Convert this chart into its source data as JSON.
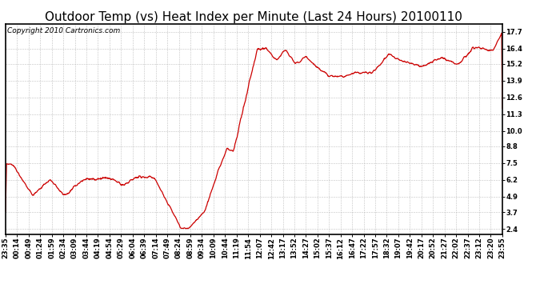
{
  "title": "Outdoor Temp (vs) Heat Index per Minute (Last 24 Hours) 20100110",
  "copyright": "Copyright 2010 Cartronics.com",
  "line_color": "#cc0000",
  "bg_color": "#ffffff",
  "grid_color": "#bbbbbb",
  "yticks": [
    2.4,
    3.7,
    4.9,
    6.2,
    7.5,
    8.8,
    10.0,
    11.3,
    12.6,
    13.9,
    15.2,
    16.4,
    17.7
  ],
  "ylim": [
    2.0,
    18.3
  ],
  "xtick_labels": [
    "23:35",
    "00:14",
    "00:49",
    "01:24",
    "01:59",
    "02:34",
    "03:09",
    "03:44",
    "04:19",
    "04:54",
    "05:29",
    "06:04",
    "06:39",
    "07:14",
    "07:49",
    "08:24",
    "08:59",
    "09:34",
    "10:09",
    "10:44",
    "11:19",
    "11:54",
    "12:07",
    "12:42",
    "13:17",
    "13:52",
    "14:27",
    "15:02",
    "15:37",
    "16:12",
    "16:47",
    "17:22",
    "17:57",
    "18:32",
    "19:07",
    "19:42",
    "20:17",
    "20:52",
    "21:27",
    "22:02",
    "22:37",
    "23:12",
    "23:20",
    "23:55"
  ],
  "title_fontsize": 11,
  "copyright_fontsize": 6.5,
  "tick_fontsize": 6
}
